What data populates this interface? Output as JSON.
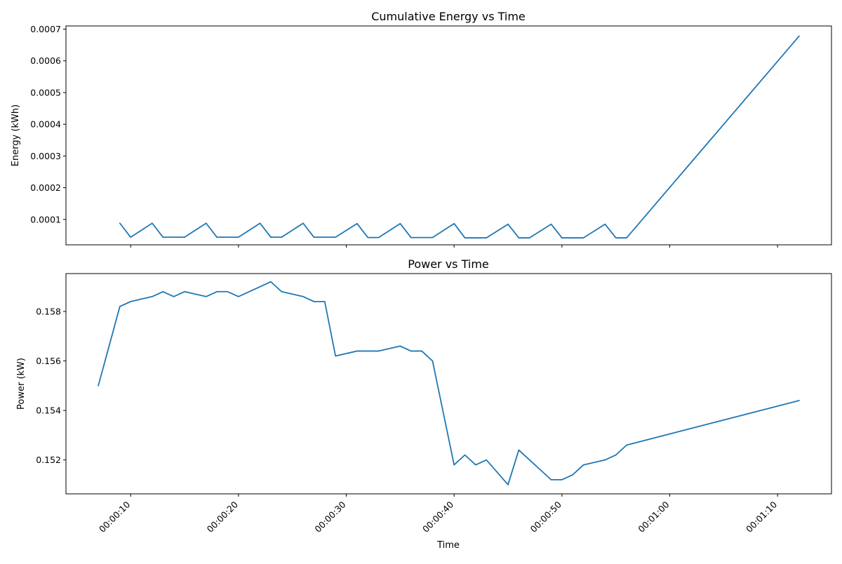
{
  "colors": {
    "series": "#1f77b4",
    "background": "#ffffff"
  },
  "chart_data": [
    {
      "type": "line",
      "title": "Cumulative Energy vs Time",
      "xlabel": "",
      "ylabel": "Energy (kWh)",
      "ylim": [
        2e-05,
        0.00071
      ],
      "xlim": [
        "00:00:04",
        "00:01:15"
      ],
      "yticks": [
        "0.0001",
        "0.0002",
        "0.0003",
        "0.0004",
        "0.0005",
        "0.0006",
        "0.0007"
      ],
      "xtick_labels_visible": false,
      "grid": false,
      "legend": "none",
      "x": [
        "00:00:09",
        "00:00:10",
        "00:00:12",
        "00:00:13",
        "00:00:15",
        "00:00:17",
        "00:00:18",
        "00:00:20",
        "00:00:22",
        "00:00:23",
        "00:00:24",
        "00:00:26",
        "00:00:27",
        "00:00:29",
        "00:00:31",
        "00:00:32",
        "00:00:33",
        "00:00:35",
        "00:00:36",
        "00:00:38",
        "00:00:40",
        "00:00:41",
        "00:00:43",
        "00:00:45",
        "00:00:46",
        "00:00:47",
        "00:00:49",
        "00:00:50",
        "00:00:52",
        "00:00:54",
        "00:00:55",
        "00:00:56",
        "00:01:12"
      ],
      "series": [
        {
          "values": [
            8.8e-05,
            4.4e-05,
            8.8e-05,
            4.4e-05,
            4.4e-05,
            8.8e-05,
            4.4e-05,
            4.4e-05,
            8.8e-05,
            4.4e-05,
            4.4e-05,
            8.8e-05,
            4.4e-05,
            4.4e-05,
            8.7e-05,
            4.3e-05,
            4.3e-05,
            8.7e-05,
            4.3e-05,
            4.3e-05,
            8.7e-05,
            4.2e-05,
            4.2e-05,
            8.5e-05,
            4.2e-05,
            4.2e-05,
            8.5e-05,
            4.2e-05,
            4.2e-05,
            8.5e-05,
            4.2e-05,
            4.2e-05,
            0.000678
          ]
        }
      ]
    },
    {
      "type": "line",
      "title": "Power vs Time",
      "xlabel": "Time",
      "ylabel": "Power (kW)",
      "ylim": [
        0.15063,
        0.15953
      ],
      "xlim": [
        "00:00:04",
        "00:01:15"
      ],
      "yticks": [
        "0.152",
        "0.154",
        "0.156",
        "0.158"
      ],
      "xticks": [
        "00:00:10",
        "00:00:20",
        "00:00:30",
        "00:00:40",
        "00:00:50",
        "00:01:00",
        "00:01:10"
      ],
      "grid": false,
      "legend": "none",
      "x": [
        "00:00:07",
        "00:00:09",
        "00:00:10",
        "00:00:12",
        "00:00:13",
        "00:00:14",
        "00:00:15",
        "00:00:17",
        "00:00:18",
        "00:00:19",
        "00:00:20",
        "00:00:23",
        "00:00:24",
        "00:00:26",
        "00:00:27",
        "00:00:28",
        "00:00:29",
        "00:00:31",
        "00:00:33",
        "00:00:35",
        "00:00:36",
        "00:00:37",
        "00:00:38",
        "00:00:40",
        "00:00:41",
        "00:00:42",
        "00:00:43",
        "00:00:45",
        "00:00:46",
        "00:00:49",
        "00:00:50",
        "00:00:51",
        "00:00:52",
        "00:00:54",
        "00:00:55",
        "00:00:56",
        "00:01:12"
      ],
      "series": [
        {
          "values": [
            0.155,
            0.1582,
            0.1584,
            0.1586,
            0.1588,
            0.1586,
            0.1588,
            0.1586,
            0.1588,
            0.1588,
            0.1586,
            0.1592,
            0.1588,
            0.1586,
            0.1584,
            0.1584,
            0.1562,
            0.1564,
            0.1564,
            0.1566,
            0.1564,
            0.1564,
            0.156,
            0.1518,
            0.1522,
            0.1518,
            0.152,
            0.151,
            0.1524,
            0.1512,
            0.1512,
            0.1514,
            0.1518,
            0.152,
            0.1522,
            0.1526,
            0.1544
          ]
        }
      ]
    }
  ]
}
